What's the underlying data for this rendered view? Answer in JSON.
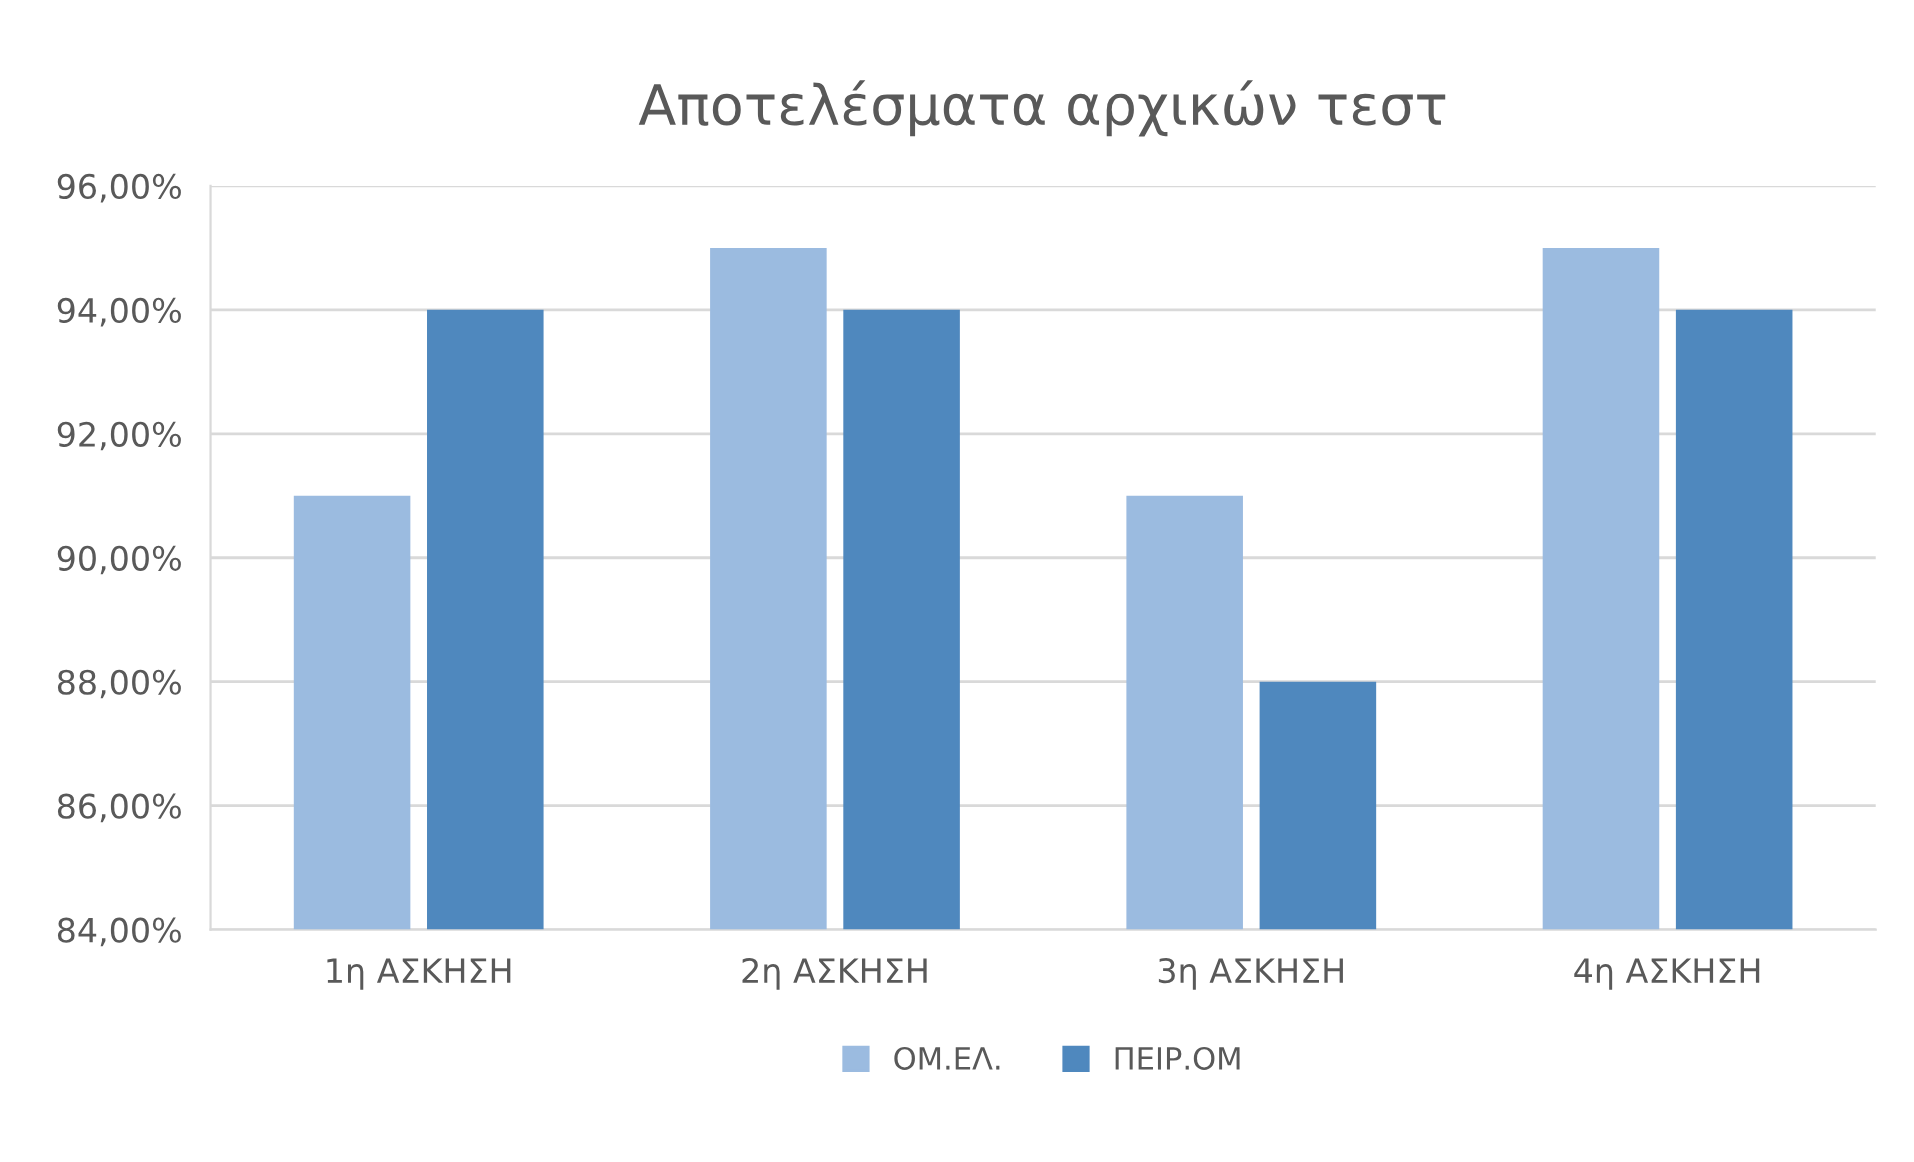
{
  "chart_data": {
    "type": "bar",
    "title": "Αποτελέσματα αρχικών τεστ",
    "categories": [
      "1η ΑΣΚΗΣΗ",
      "2η ΑΣΚΗΣΗ",
      "3η ΑΣΚΗΣΗ",
      "4η ΑΣΚΗΣΗ"
    ],
    "series": [
      {
        "name": "ΟΜ.ΕΛ.",
        "color": "#9bbbe0",
        "values": [
          91,
          95,
          91,
          95
        ]
      },
      {
        "name": "ΠΕΙΡ.ΟΜ",
        "color": "#4f88be",
        "values": [
          94,
          94,
          88,
          94
        ]
      }
    ],
    "ylim": [
      84,
      96
    ],
    "yticks": [
      {
        "value": 84,
        "label": "84,00%"
      },
      {
        "value": 86,
        "label": "86,00%"
      },
      {
        "value": 88,
        "label": "88,00%"
      },
      {
        "value": 90,
        "label": "90,00%"
      },
      {
        "value": 92,
        "label": "92,00%"
      },
      {
        "value": 94,
        "label": "94,00%"
      },
      {
        "value": 96,
        "label": "96,00%"
      }
    ],
    "grid": "y",
    "legend": "bottom"
  }
}
